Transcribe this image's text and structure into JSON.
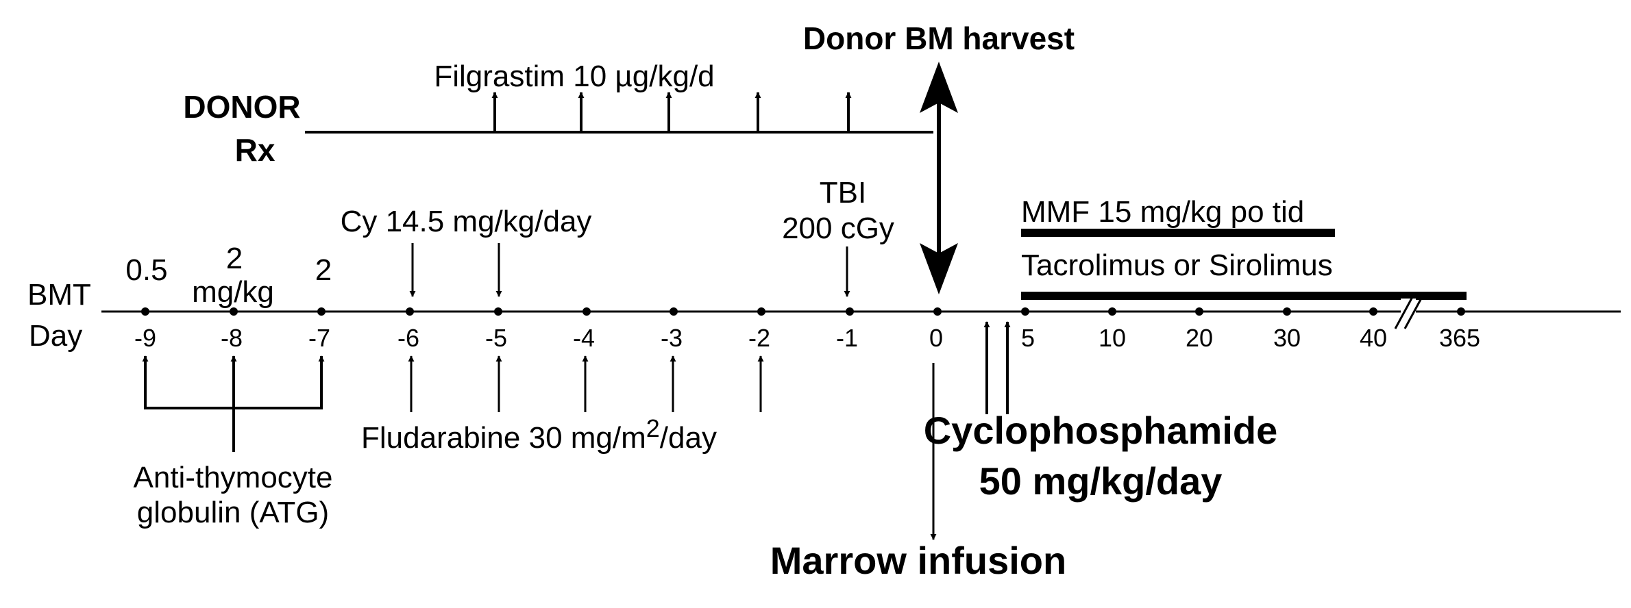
{
  "title_donor_harvest": "Donor BM harvest",
  "filgrastim": "Filgrastim 10 µg/kg/d",
  "donor_rx": [
    "DONOR",
    "Rx"
  ],
  "bmt_day": [
    "BMT",
    "Day"
  ],
  "atg_doses": [
    "0.5",
    "2",
    "mg/kg",
    "2"
  ],
  "cy_label": "Cy 14.5 mg/kg/day",
  "tbi": [
    "TBI",
    "200 cGy"
  ],
  "mmf": "MMF 15 mg/kg po tid",
  "tacro": "Tacrolimus or Sirolimus",
  "days": [
    "-9",
    "-8",
    "-7",
    "-6",
    "-5",
    "-4",
    "-3",
    "-2",
    "-1",
    "0",
    "5",
    "10",
    "20",
    "30",
    "40",
    "365"
  ],
  "fludarabine": {
    "main": "Fludarabine 30 mg/m",
    "sup": "2",
    "tail": "/day"
  },
  "atg_name": [
    "Anti-thymocyte",
    "globulin (ATG)"
  ],
  "cyclophosphamide": [
    "Cyclophosphamide",
    "50 mg/kg/day"
  ],
  "marrow_infusion": "Marrow infusion",
  "colors": {
    "ink": "#000000",
    "background": "#ffffff"
  }
}
